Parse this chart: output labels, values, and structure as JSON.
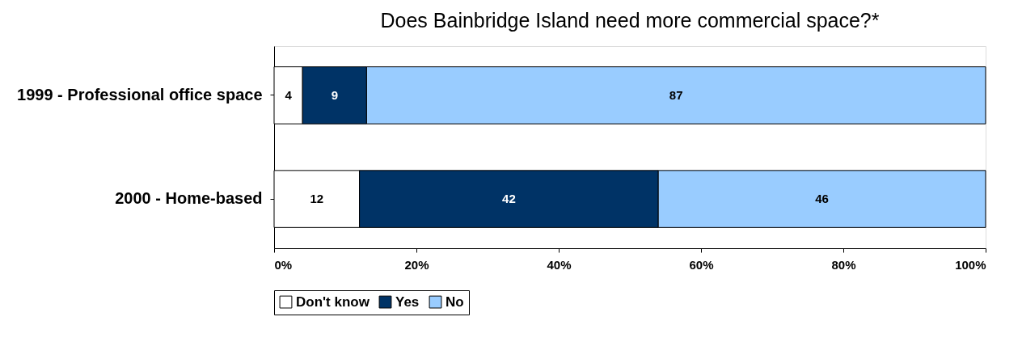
{
  "chart_data": {
    "type": "bar",
    "orientation": "horizontal",
    "stacked": true,
    "title": "Does Bainbridge Island need more commercial space?*",
    "categories": [
      "1999 - Professional office space",
      "2000 - Home-based"
    ],
    "series": [
      {
        "name": "Don't know",
        "color": "#ffffff",
        "values": [
          4,
          12
        ]
      },
      {
        "name": "Yes",
        "color": "#003366",
        "values": [
          9,
          42
        ]
      },
      {
        "name": "No",
        "color": "#99ccff",
        "values": [
          87,
          46
        ]
      }
    ],
    "xlim": [
      0,
      100
    ],
    "xticks": [
      {
        "value": 0,
        "label": "0%"
      },
      {
        "value": 20,
        "label": "20%"
      },
      {
        "value": 40,
        "label": "40%"
      },
      {
        "value": 60,
        "label": "60%"
      },
      {
        "value": 80,
        "label": "80%"
      },
      {
        "value": 100,
        "label": "100%"
      }
    ],
    "data_labels": true,
    "legend": "bottom",
    "grid": false
  }
}
